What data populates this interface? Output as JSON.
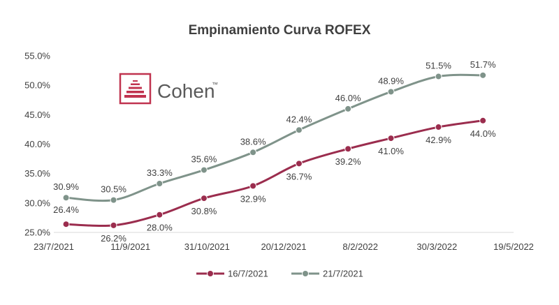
{
  "chart_data": {
    "type": "line",
    "title": "Empinamiento Curva ROFEX",
    "xlabel": "",
    "ylabel": "",
    "x_ticks": [
      "23/7/2021",
      "11/9/2021",
      "31/10/2021",
      "20/12/2021",
      "8/2/2022",
      "30/3/2022",
      "19/5/2022"
    ],
    "y_ticks": [
      "25.0%",
      "30.0%",
      "35.0%",
      "40.0%",
      "45.0%",
      "50.0%",
      "55.0%"
    ],
    "ylim": [
      25,
      55
    ],
    "xlim": [
      "2021-07-23",
      "2022-05-19"
    ],
    "grid": false,
    "legend_position": "bottom",
    "x": [
      "2021-07-31",
      "2021-08-31",
      "2021-09-30",
      "2021-10-29",
      "2021-11-30",
      "2021-12-30",
      "2022-01-31",
      "2022-02-28",
      "2022-03-31",
      "2022-04-29"
    ],
    "series": [
      {
        "name": "16/7/2021",
        "color": "#9b2d4e",
        "values": [
          26.4,
          26.2,
          28.0,
          30.8,
          32.9,
          36.7,
          39.2,
          41.0,
          42.9,
          44.0
        ],
        "labels": [
          "26.4%",
          "26.2%",
          "28.0%",
          "30.8%",
          "32.9%",
          "36.7%",
          "39.2%",
          "41.0%",
          "42.9%",
          "44.0%"
        ]
      },
      {
        "name": "21/7/2021",
        "color": "#7f938a",
        "values": [
          30.9,
          30.5,
          33.3,
          35.6,
          38.6,
          42.4,
          46.0,
          48.9,
          51.5,
          51.7
        ],
        "labels": [
          "30.9%",
          "30.5%",
          "33.3%",
          "35.6%",
          "38.6%",
          "42.4%",
          "46.0%",
          "48.9%",
          "51.5%",
          "51.7%"
        ]
      }
    ]
  },
  "logo": {
    "text": "Cohen",
    "mark": "™",
    "color": "#c0334f"
  }
}
